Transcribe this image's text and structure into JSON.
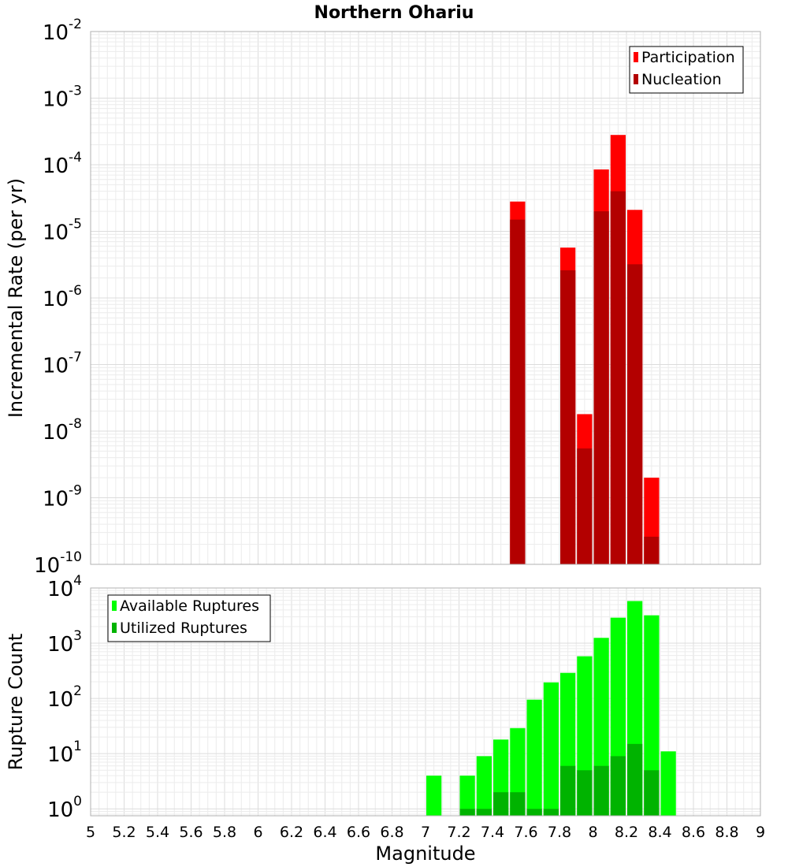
{
  "chart_data": [
    {
      "type": "bar",
      "title": "Northern Ohariu",
      "xlabel": "",
      "ylabel": "Incremental Rate (per yr)",
      "y_scale": "log",
      "xlim": [
        5,
        9
      ],
      "ylim": [
        1e-10,
        0.01
      ],
      "x_tick_labels": [],
      "y_ticks": [
        {
          "base": "10",
          "exp": "-10"
        },
        {
          "base": "10",
          "exp": "-9"
        },
        {
          "base": "10",
          "exp": "-8"
        },
        {
          "base": "10",
          "exp": "-7"
        },
        {
          "base": "10",
          "exp": "-6"
        },
        {
          "base": "10",
          "exp": "-5"
        },
        {
          "base": "10",
          "exp": "-4"
        },
        {
          "base": "10",
          "exp": "-3"
        },
        {
          "base": "10",
          "exp": "-2"
        }
      ],
      "grid": true,
      "legend_position": "top-right",
      "series": [
        {
          "name": "Participation",
          "color": "#ff0000",
          "points": [
            {
              "x": 7.55,
              "y": 2.8e-05
            },
            {
              "x": 7.85,
              "y": 5.7e-06
            },
            {
              "x": 7.95,
              "y": 1.8e-08
            },
            {
              "x": 8.05,
              "y": 8.5e-05
            },
            {
              "x": 8.15,
              "y": 0.00028
            },
            {
              "x": 8.25,
              "y": 2.1e-05
            },
            {
              "x": 8.35,
              "y": 2e-09
            }
          ]
        },
        {
          "name": "Nucleation",
          "color": "#b30000",
          "points": [
            {
              "x": 7.55,
              "y": 1.5e-05
            },
            {
              "x": 7.85,
              "y": 2.6e-06
            },
            {
              "x": 7.95,
              "y": 5.5e-09
            },
            {
              "x": 8.05,
              "y": 2e-05
            },
            {
              "x": 8.15,
              "y": 4e-05
            },
            {
              "x": 8.25,
              "y": 3.2e-06
            },
            {
              "x": 8.35,
              "y": 2.6e-10
            }
          ]
        }
      ]
    },
    {
      "type": "bar",
      "title": "",
      "xlabel": "Magnitude",
      "ylabel": "Rupture Count",
      "y_scale": "log",
      "xlim": [
        5,
        9
      ],
      "ylim": [
        0.75,
        10000
      ],
      "x_tick_labels": [
        "5",
        "5.2",
        "5.4",
        "5.6",
        "5.8",
        "6",
        "6.2",
        "6.4",
        "6.6",
        "6.8",
        "7",
        "7.2",
        "7.4",
        "7.6",
        "7.8",
        "8",
        "8.2",
        "8.4",
        "8.6",
        "8.8",
        "9"
      ],
      "y_ticks": [
        {
          "base": "10",
          "exp": "0"
        },
        {
          "base": "10",
          "exp": "1"
        },
        {
          "base": "10",
          "exp": "2"
        },
        {
          "base": "10",
          "exp": "3"
        },
        {
          "base": "10",
          "exp": "4"
        }
      ],
      "grid": true,
      "legend_position": "top-left",
      "series": [
        {
          "name": "Available Ruptures",
          "color": "#00ff00",
          "points": [
            {
              "x": 7.05,
              "y": 4
            },
            {
              "x": 7.25,
              "y": 4
            },
            {
              "x": 7.35,
              "y": 9
            },
            {
              "x": 7.45,
              "y": 18
            },
            {
              "x": 7.55,
              "y": 29
            },
            {
              "x": 7.65,
              "y": 95
            },
            {
              "x": 7.75,
              "y": 195
            },
            {
              "x": 7.85,
              "y": 290
            },
            {
              "x": 7.95,
              "y": 580
            },
            {
              "x": 8.05,
              "y": 1250
            },
            {
              "x": 8.15,
              "y": 2900
            },
            {
              "x": 8.25,
              "y": 5800
            },
            {
              "x": 8.35,
              "y": 3200
            },
            {
              "x": 8.45,
              "y": 11
            }
          ]
        },
        {
          "name": "Utilized Ruptures",
          "color": "#00b300",
          "points": [
            {
              "x": 7.25,
              "y": 1
            },
            {
              "x": 7.35,
              "y": 1
            },
            {
              "x": 7.45,
              "y": 2
            },
            {
              "x": 7.55,
              "y": 2
            },
            {
              "x": 7.65,
              "y": 1
            },
            {
              "x": 7.75,
              "y": 1
            },
            {
              "x": 7.85,
              "y": 6
            },
            {
              "x": 7.95,
              "y": 5
            },
            {
              "x": 8.05,
              "y": 6
            },
            {
              "x": 8.15,
              "y": 9
            },
            {
              "x": 8.25,
              "y": 15
            },
            {
              "x": 8.35,
              "y": 5
            }
          ]
        }
      ]
    }
  ]
}
